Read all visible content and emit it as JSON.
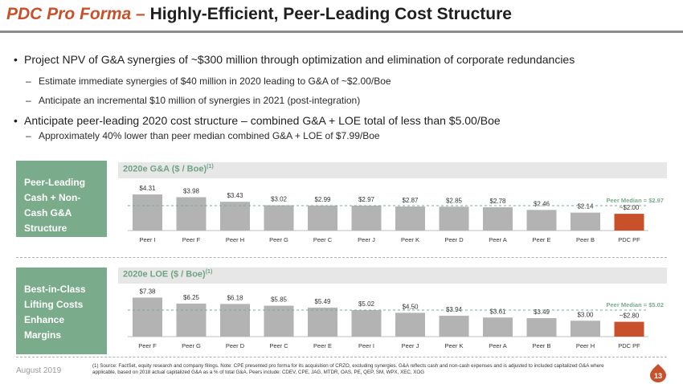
{
  "header": {
    "title_prefix": "PDC Pro Forma",
    "title_dash": "–",
    "title_rest": "Highly-Efficient, Peer-Leading Cost Structure"
  },
  "bullets": {
    "b1": "Project NPV of G&A synergies of ~$300 million through optimization and elimination of corporate redundancies",
    "b1_sub1": "Estimate immediate synergies of $40 million in 2020 leading to G&A of ~$2.00/Boe",
    "b1_sub2": "Anticipate an incremental $10 million of synergies in 2021 (post-integration)",
    "b2": "Anticipate peer-leading 2020 cost structure – combined G&A + LOE total of less than $5.00/Boe",
    "b2_sub1": "Approximately 40% lower than peer median combined G&A + LOE of $7.99/Boe"
  },
  "section1": {
    "side_label_lines": [
      "Peer-Leading",
      "Cash + Non-",
      "Cash G&A",
      "Structure"
    ],
    "band_title": "2020e G&A ($ / Boe)",
    "band_sup": "(1)"
  },
  "section2": {
    "side_label_lines": [
      "Best-in-Class",
      "Lifting Costs",
      "Enhance",
      "Margins"
    ],
    "band_title": "2020e LOE ($ / Boe)",
    "band_sup": "(1)"
  },
  "colors": {
    "bar": "#b3b3b3",
    "highlight": "#c8502b",
    "accent": "#7aac8c",
    "median_line": "#7aac8c"
  },
  "chart_data": [
    {
      "type": "bar",
      "title": "2020e G&A ($ / Boe)",
      "categories": [
        "Peer I",
        "Peer F",
        "Peer H",
        "Peer G",
        "Peer C",
        "Peer J",
        "Peer K",
        "Peer D",
        "Peer A",
        "Peer E",
        "Peer B",
        "PDC PF"
      ],
      "values": [
        4.31,
        3.98,
        3.43,
        3.02,
        2.99,
        2.97,
        2.87,
        2.85,
        2.78,
        2.46,
        2.14,
        2.0
      ],
      "labels": [
        "$4.31",
        "$3.98",
        "$3.43",
        "$3.02",
        "$2.99",
        "$2.97",
        "$2.87",
        "$2.85",
        "$2.78",
        "$2.46",
        "$2.14",
        "~$2.00"
      ],
      "highlight_index": 11,
      "median": 2.97,
      "median_label": "Peer Median = $2.97",
      "ylim": [
        0,
        4.6
      ]
    },
    {
      "type": "bar",
      "title": "2020e LOE ($ / Boe)",
      "categories": [
        "Peer F",
        "Peer G",
        "Peer D",
        "Peer C",
        "Peer E",
        "Peer I",
        "Peer J",
        "Peer K",
        "Peer A",
        "Peer B",
        "Peer H",
        "PDC PF"
      ],
      "values": [
        7.38,
        6.25,
        6.18,
        5.85,
        5.49,
        5.02,
        4.5,
        3.94,
        3.61,
        3.49,
        3.0,
        2.8
      ],
      "labels": [
        "$7.38",
        "$6.25",
        "$6.18",
        "$5.85",
        "$5.49",
        "$5.02",
        "$4.50",
        "$3.94",
        "$3.61",
        "$3.49",
        "$3.00",
        "~$2.80"
      ],
      "highlight_index": 11,
      "median": 5.02,
      "median_label": "Peer Median = $5.02",
      "ylim": [
        0,
        7.6
      ]
    }
  ],
  "footer": {
    "date": "August 2019",
    "note": "(1)  Source: FactSet, equity research and company filings. Note: CPE presented pro forma for its acquisition of CRZO, excluding synergies.  G&A reflects cash and non-cash expenses and is adjusted to included capitalized G&A where applicable, based on 2018 actual capitalized G&A as a % of total G&A. Peers include: CDEV, CPE, JAG, MTDR, OAS, PE, QEP, SM, WPX, XEC, XOG",
    "page": "13"
  }
}
